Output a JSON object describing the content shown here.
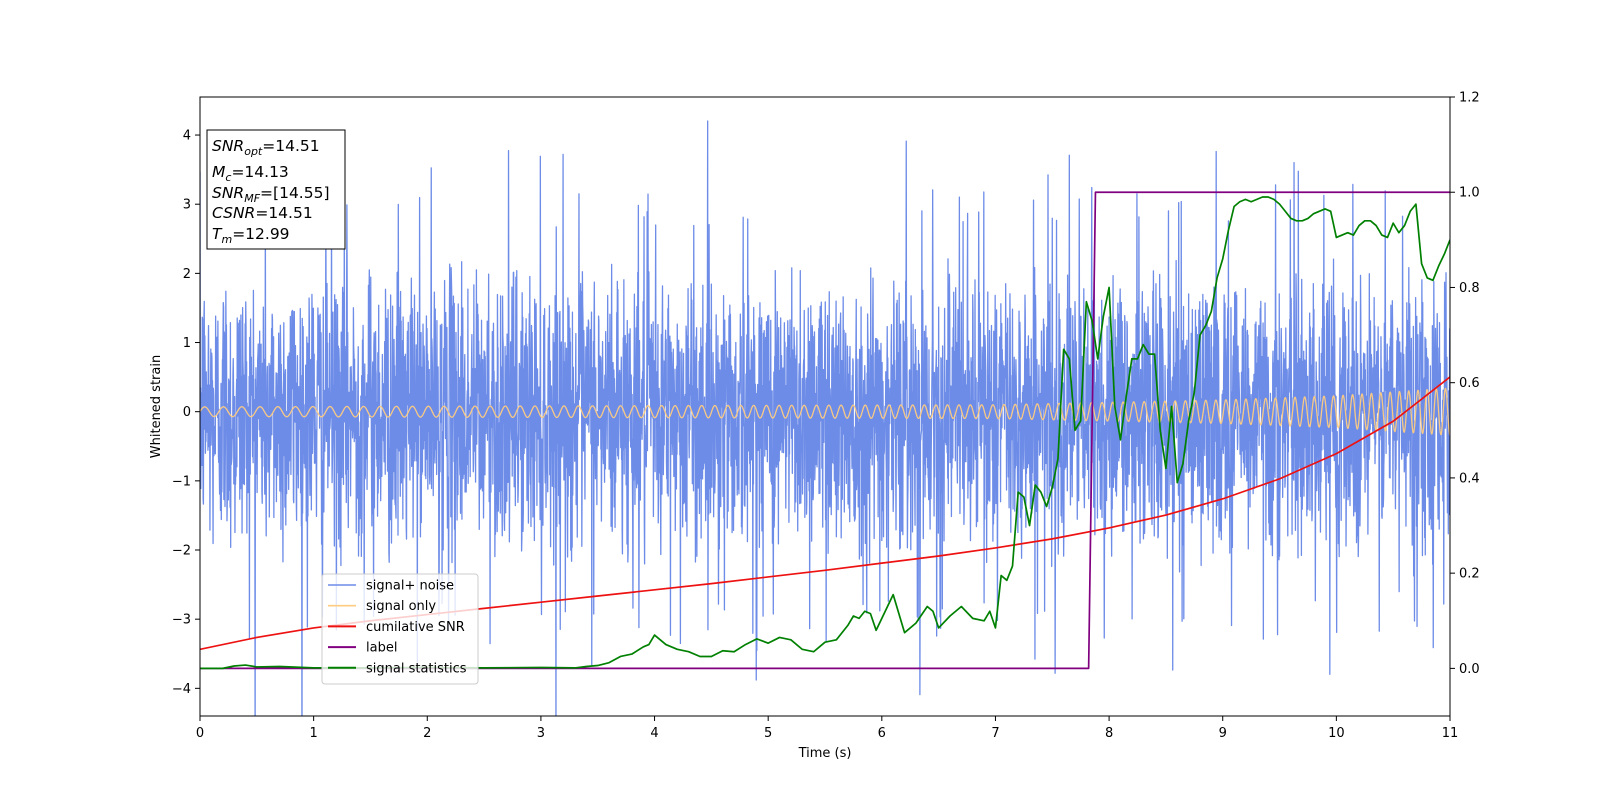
{
  "chart_data": {
    "type": "line",
    "xlabel": "Time (s)",
    "ylabel": "Whitened strain",
    "xlim": [
      0,
      11
    ],
    "ylim_left": [
      -4.4,
      4.55
    ],
    "ylim_right": [
      -0.1,
      1.2
    ],
    "xticks": [
      "0",
      "1",
      "2",
      "3",
      "4",
      "5",
      "6",
      "7",
      "8",
      "9",
      "10",
      "11"
    ],
    "yticks_left": [
      "−4",
      "−3",
      "−2",
      "−1",
      "0",
      "1",
      "2",
      "3",
      "4"
    ],
    "yticks_right": [
      "0.0",
      "0.2",
      "0.4",
      "0.6",
      "0.8",
      "1.0",
      "1.2"
    ],
    "grid": false,
    "legend_position": "lower-left",
    "info_box": {
      "lines": [
        {
          "name": "SNR",
          "sub": "opt",
          "value": "=14.51"
        },
        {
          "name": "M",
          "sub": "c",
          "value": "=14.13"
        },
        {
          "name": "SNR",
          "sub": "MF",
          "value": "=[14.55]"
        },
        {
          "name": "CSNR",
          "sub": "",
          "value": "=14.51"
        },
        {
          "name": "T",
          "sub": "m",
          "value": "=12.99"
        }
      ]
    },
    "series": [
      {
        "name": "signal+ noise",
        "axis": "left",
        "color": "#6d8ce8",
        "description_amplitude_std": 1.0
      },
      {
        "name": "signal only",
        "axis": "left",
        "color": "#ffcc80",
        "chirp_amplitude": [
          [
            0,
            0.07
          ],
          [
            7,
            0.1
          ],
          [
            9,
            0.17
          ],
          [
            10,
            0.23
          ],
          [
            11,
            0.34
          ]
        ],
        "chirp_frequency_hz": [
          [
            0,
            6
          ],
          [
            11,
            12.5
          ]
        ]
      },
      {
        "name": "cumilative SNR",
        "axis": "right",
        "color": "#ee1111",
        "x": [
          0,
          0.5,
          1,
          1.5,
          2,
          2.5,
          3,
          3.5,
          4,
          4.5,
          5,
          5.5,
          6,
          6.5,
          7,
          7.5,
          8,
          8.5,
          9,
          9.5,
          10,
          10.5,
          11
        ],
        "y": [
          0.04,
          0.065,
          0.085,
          0.1,
          0.113,
          0.126,
          0.139,
          0.152,
          0.165,
          0.178,
          0.192,
          0.206,
          0.221,
          0.236,
          0.253,
          0.272,
          0.295,
          0.322,
          0.356,
          0.398,
          0.451,
          0.519,
          0.612
        ]
      },
      {
        "name": "label",
        "axis": "right",
        "color": "#800080",
        "x": [
          0,
          7.82,
          7.88,
          11
        ],
        "y": [
          0,
          0,
          1,
          1
        ]
      },
      {
        "name": "signal statistics",
        "axis": "right",
        "color": "#008000",
        "x": [
          0,
          0.1,
          0.2,
          0.3,
          0.4,
          0.5,
          0.7,
          1.0,
          1.5,
          2.0,
          2.5,
          3.0,
          3.3,
          3.4,
          3.5,
          3.6,
          3.7,
          3.8,
          3.9,
          3.95,
          4.0,
          4.1,
          4.2,
          4.3,
          4.4,
          4.5,
          4.6,
          4.7,
          4.8,
          4.9,
          5.0,
          5.1,
          5.2,
          5.3,
          5.4,
          5.5,
          5.6,
          5.7,
          5.75,
          5.8,
          5.85,
          5.9,
          5.95,
          6.0,
          6.1,
          6.2,
          6.3,
          6.4,
          6.45,
          6.5,
          6.6,
          6.7,
          6.8,
          6.9,
          6.95,
          7.0,
          7.05,
          7.1,
          7.15,
          7.2,
          7.25,
          7.3,
          7.35,
          7.4,
          7.45,
          7.5,
          7.55,
          7.6,
          7.65,
          7.7,
          7.75,
          7.8,
          7.85,
          7.9,
          7.95,
          8.0,
          8.05,
          8.1,
          8.15,
          8.2,
          8.25,
          8.3,
          8.35,
          8.4,
          8.45,
          8.5,
          8.55,
          8.6,
          8.65,
          8.7,
          8.75,
          8.8,
          8.85,
          8.9,
          8.95,
          9.0,
          9.05,
          9.1,
          9.15,
          9.2,
          9.25,
          9.3,
          9.35,
          9.4,
          9.45,
          9.5,
          9.55,
          9.6,
          9.65,
          9.7,
          9.75,
          9.8,
          9.85,
          9.9,
          9.95,
          10.0,
          10.05,
          10.1,
          10.15,
          10.2,
          10.25,
          10.3,
          10.35,
          10.4,
          10.45,
          10.5,
          10.55,
          10.6,
          10.65,
          10.7,
          10.75,
          10.8,
          10.85,
          10.9,
          10.95,
          11.0
        ],
        "y": [
          0.0,
          0.0,
          0.0,
          0.005,
          0.007,
          0.003,
          0.004,
          0.001,
          0.001,
          0.002,
          0.001,
          0.002,
          0.001,
          0.004,
          0.006,
          0.012,
          0.025,
          0.03,
          0.045,
          0.05,
          0.07,
          0.05,
          0.04,
          0.035,
          0.025,
          0.025,
          0.037,
          0.035,
          0.05,
          0.062,
          0.053,
          0.065,
          0.06,
          0.04,
          0.035,
          0.055,
          0.06,
          0.09,
          0.11,
          0.105,
          0.12,
          0.115,
          0.08,
          0.105,
          0.155,
          0.075,
          0.095,
          0.13,
          0.12,
          0.085,
          0.11,
          0.13,
          0.105,
          0.1,
          0.12,
          0.085,
          0.195,
          0.185,
          0.215,
          0.37,
          0.36,
          0.3,
          0.385,
          0.37,
          0.34,
          0.38,
          0.44,
          0.67,
          0.65,
          0.5,
          0.52,
          0.77,
          0.73,
          0.65,
          0.74,
          0.8,
          0.55,
          0.48,
          0.57,
          0.65,
          0.65,
          0.68,
          0.66,
          0.66,
          0.5,
          0.42,
          0.55,
          0.39,
          0.43,
          0.52,
          0.58,
          0.7,
          0.72,
          0.75,
          0.82,
          0.86,
          0.92,
          0.97,
          0.98,
          0.985,
          0.98,
          0.985,
          0.99,
          0.99,
          0.985,
          0.975,
          0.96,
          0.945,
          0.94,
          0.94,
          0.945,
          0.955,
          0.96,
          0.965,
          0.96,
          0.905,
          0.91,
          0.915,
          0.91,
          0.93,
          0.94,
          0.94,
          0.93,
          0.91,
          0.905,
          0.935,
          0.915,
          0.93,
          0.96,
          0.975,
          0.85,
          0.82,
          0.815,
          0.845,
          0.87,
          0.9
        ]
      }
    ]
  }
}
